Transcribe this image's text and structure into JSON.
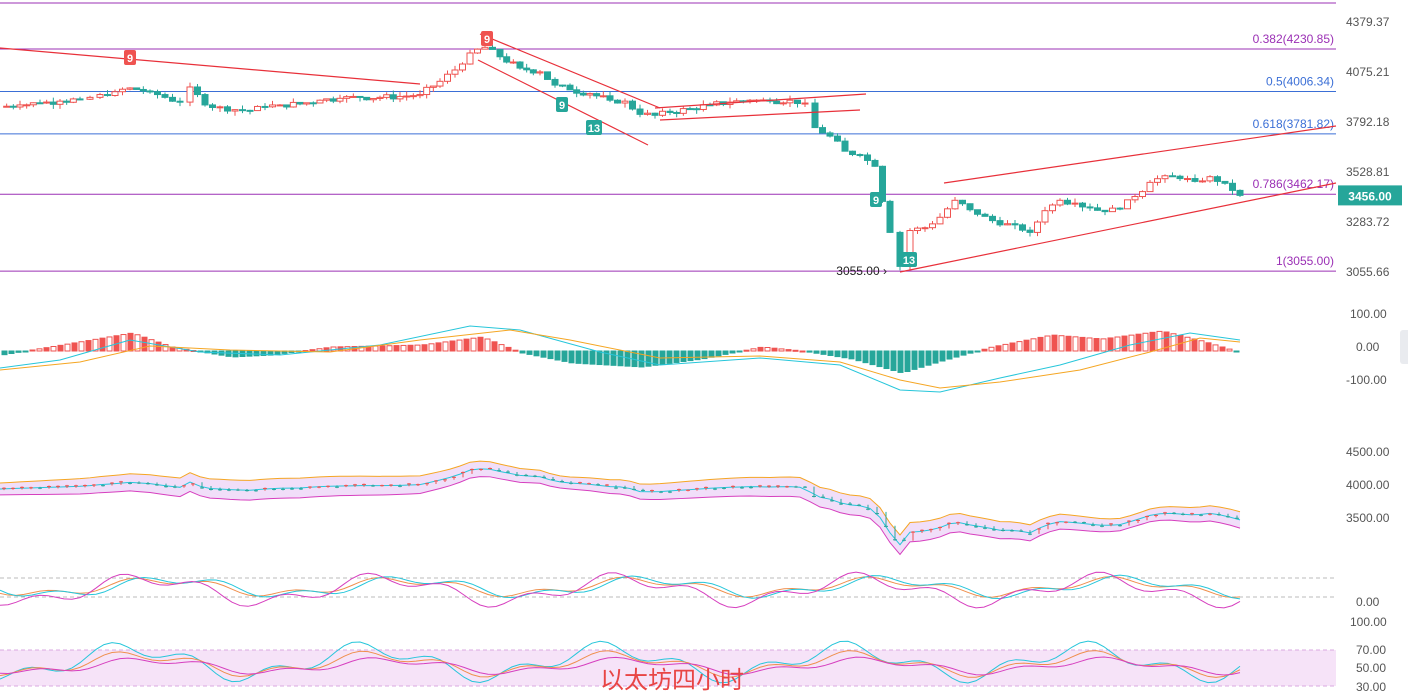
{
  "colors": {
    "up": "#ef5350",
    "down": "#26a69a",
    "fib": "#9b30b5",
    "fib_blue": "#3b6fd6",
    "trend": "#e8303a",
    "axis_text": "#555555",
    "price_label_bg": "#26a69a",
    "macd_line": "#26c6da",
    "signal_line": "#f5a623",
    "band_fill": "#e8c8f5",
    "band_upper": "#f5a623",
    "band_mid": "#26c6da",
    "band_lower": "#d63fbf",
    "kdj_k": "#ef8f4d",
    "kdj_d": "#26c6da",
    "kdj_j": "#d63fbf",
    "rsi_fill": "#f6e3f8"
  },
  "price_axis": {
    "ticks": [
      "4379.37",
      "4075.21",
      "3792.18",
      "3528.81",
      "3283.72",
      "3055.66"
    ],
    "current_price": "3456.00"
  },
  "fib_levels": [
    {
      "label": "0.382(4230.85)",
      "value": 4230.85,
      "color": "fib"
    },
    {
      "label": "0.5(4006.34)",
      "value": 4006.34,
      "color": "fib_blue"
    },
    {
      "label": "0.618(3781.82)",
      "value": 3781.82,
      "color": "fib_blue"
    },
    {
      "label": "0.786(3462.17)",
      "value": 3462.17,
      "color": "fib"
    },
    {
      "label": "1(3055.00)",
      "value": 3055.0,
      "color": "fib"
    }
  ],
  "low_marker": "3055.00",
  "td_markers": [
    {
      "text": "9",
      "kind": "sell"
    },
    {
      "text": "9",
      "kind": "sell"
    },
    {
      "text": "9",
      "kind": "buy"
    },
    {
      "text": "13",
      "kind": "buy"
    },
    {
      "text": "9",
      "kind": "buy"
    },
    {
      "text": "13",
      "kind": "buy"
    }
  ],
  "macd_axis": {
    "ticks": [
      "100.00",
      "0.00",
      "-100.00"
    ]
  },
  "boll_axis": {
    "ticks": [
      "4500.00",
      "4000.00",
      "3500.00"
    ]
  },
  "kdj_axis": {
    "ticks": [
      "0.00"
    ]
  },
  "rsi_axis": {
    "ticks": [
      "100.00",
      "70.00",
      "50.00",
      "30.00"
    ]
  },
  "watermark": "以太坊四小时",
  "chart_data": {
    "type": "candlestick",
    "close_points": [
      [
        0,
        3925
      ],
      [
        20,
        3935
      ],
      [
        40,
        3945
      ],
      [
        60,
        3955
      ],
      [
        80,
        3965
      ],
      [
        90,
        3975
      ],
      [
        100,
        3990
      ],
      [
        115,
        4005
      ],
      [
        130,
        4025
      ],
      [
        150,
        4005
      ],
      [
        165,
        3975
      ],
      [
        180,
        3950
      ],
      [
        190,
        4030
      ],
      [
        205,
        3935
      ],
      [
        220,
        3925
      ],
      [
        235,
        3910
      ],
      [
        250,
        3905
      ],
      [
        265,
        3925
      ],
      [
        280,
        3935
      ],
      [
        300,
        3940
      ],
      [
        320,
        3960
      ],
      [
        340,
        3970
      ],
      [
        360,
        3975
      ],
      [
        380,
        3975
      ],
      [
        400,
        3980
      ],
      [
        420,
        3990
      ],
      [
        440,
        4060
      ],
      [
        455,
        4120
      ],
      [
        470,
        4210
      ],
      [
        485,
        4240
      ],
      [
        500,
        4190
      ],
      [
        520,
        4130
      ],
      [
        540,
        4110
      ],
      [
        555,
        4040
      ],
      [
        570,
        4015
      ],
      [
        590,
        3995
      ],
      [
        610,
        3960
      ],
      [
        625,
        3955
      ],
      [
        640,
        3885
      ],
      [
        655,
        3880
      ],
      [
        670,
        3895
      ],
      [
        690,
        3915
      ],
      [
        710,
        3935
      ],
      [
        730,
        3950
      ],
      [
        750,
        3960
      ],
      [
        770,
        3955
      ],
      [
        790,
        3960
      ],
      [
        805,
        3945
      ],
      [
        815,
        3815
      ],
      [
        830,
        3770
      ],
      [
        845,
        3690
      ],
      [
        860,
        3670
      ],
      [
        875,
        3610
      ],
      [
        890,
        3260
      ],
      [
        900,
        3080
      ],
      [
        910,
        3270
      ],
      [
        925,
        3285
      ],
      [
        940,
        3340
      ],
      [
        955,
        3430
      ],
      [
        970,
        3380
      ],
      [
        985,
        3345
      ],
      [
        1000,
        3300
      ],
      [
        1015,
        3300
      ],
      [
        1030,
        3260
      ],
      [
        1045,
        3375
      ],
      [
        1060,
        3430
      ],
      [
        1075,
        3415
      ],
      [
        1090,
        3390
      ],
      [
        1105,
        3370
      ],
      [
        1120,
        3385
      ],
      [
        1135,
        3450
      ],
      [
        1150,
        3525
      ],
      [
        1165,
        3560
      ],
      [
        1180,
        3545
      ],
      [
        1195,
        3530
      ],
      [
        1210,
        3555
      ],
      [
        1225,
        3520
      ],
      [
        1240,
        3456
      ]
    ],
    "x_range": [
      0,
      1336
    ],
    "ylim": [
      3000,
      4420
    ],
    "ylim_note": "price"
  }
}
